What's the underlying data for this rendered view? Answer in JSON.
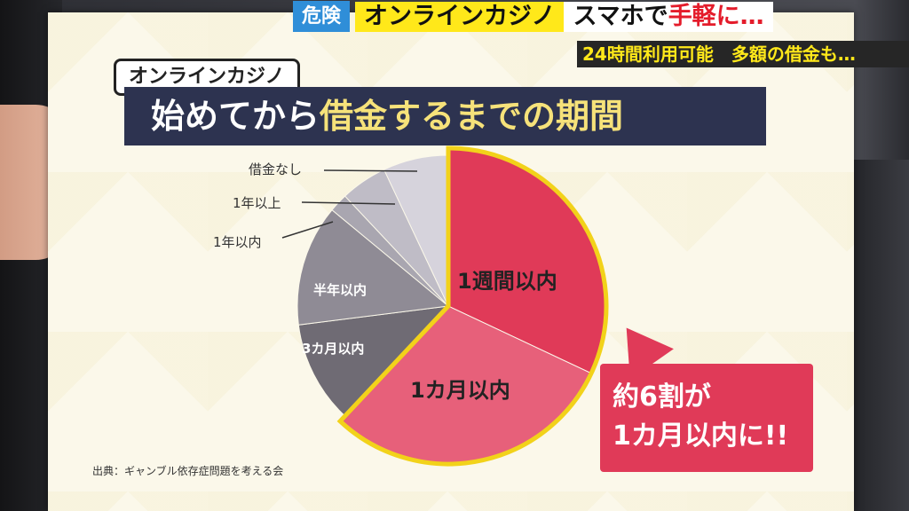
{
  "ticker": {
    "tag": "危険",
    "main": "オンラインカジノ",
    "rest_plain": "スマホで",
    "rest_red": "手軽に…"
  },
  "subticker": "24時間利用可能　多額の借金も…",
  "board": {
    "tag": "オンラインカジノ",
    "title_plain": "始めてから",
    "title_highlight": "借金するまでの期間",
    "callout_line1": "約6割が",
    "callout_line2": "1カ月以内に!!",
    "source": "出典：ギャンブル依存症問題を考える会"
  },
  "chart_data": {
    "type": "pie",
    "title": "始めてから借金するまでの期間",
    "slices": [
      {
        "label": "1週間以内",
        "value": 32,
        "color": "#e03a58"
      },
      {
        "label": "1カ月以内",
        "value": 30,
        "color": "#e7607a"
      },
      {
        "label": "3カ月以内",
        "value": 11,
        "color": "#6f6b74"
      },
      {
        "label": "半年以内",
        "value": 13,
        "color": "#8f8b95"
      },
      {
        "label": "1年以内",
        "value": 2,
        "color": "#a9a6b0"
      },
      {
        "label": "1年以上",
        "value": 5,
        "color": "#bfbcc6"
      },
      {
        "label": "借金なし",
        "value": 7,
        "color": "#d6d3dc"
      }
    ],
    "highlight": "1週間以内 + 1カ月以内 (約6割)",
    "source": "出典：ギャンブル依存症問題を考える会"
  }
}
